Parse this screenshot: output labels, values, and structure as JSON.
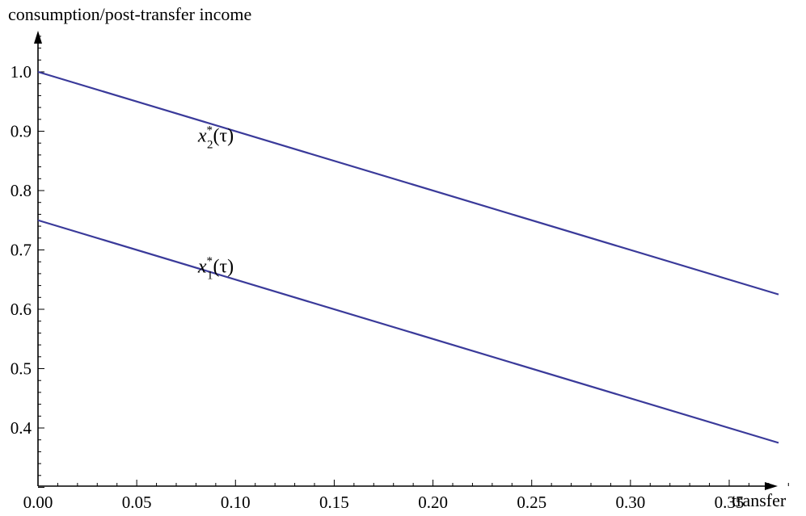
{
  "chart_data": {
    "type": "line",
    "ylabel": "consumption/post-transfer income",
    "xlabel": "transfer",
    "xlim": [
      0,
      0.385
    ],
    "ylim": [
      0.3,
      1.07
    ],
    "x_ticks": [
      "0.00",
      "0.05",
      "0.10",
      "0.15",
      "0.20",
      "0.25",
      "0.30",
      "0.35"
    ],
    "y_ticks": [
      "0.4",
      "0.5",
      "0.6",
      "0.7",
      "0.8",
      "0.9",
      "1.0"
    ],
    "grid": false,
    "line_color": "#3a3a9a",
    "series": [
      {
        "label_base": "x",
        "label_sup": "*",
        "label_sub": "2",
        "label_arg": "(τ)",
        "label_at": [
          0.081,
          0.882
        ],
        "x": [
          0,
          0.375
        ],
        "y": [
          1.0,
          0.625
        ]
      },
      {
        "label_base": "x",
        "label_sup": "*",
        "label_sub": "1",
        "label_arg": "(τ)",
        "label_at": [
          0.081,
          0.662
        ],
        "x": [
          0,
          0.375
        ],
        "y": [
          0.75,
          0.375
        ]
      }
    ]
  }
}
